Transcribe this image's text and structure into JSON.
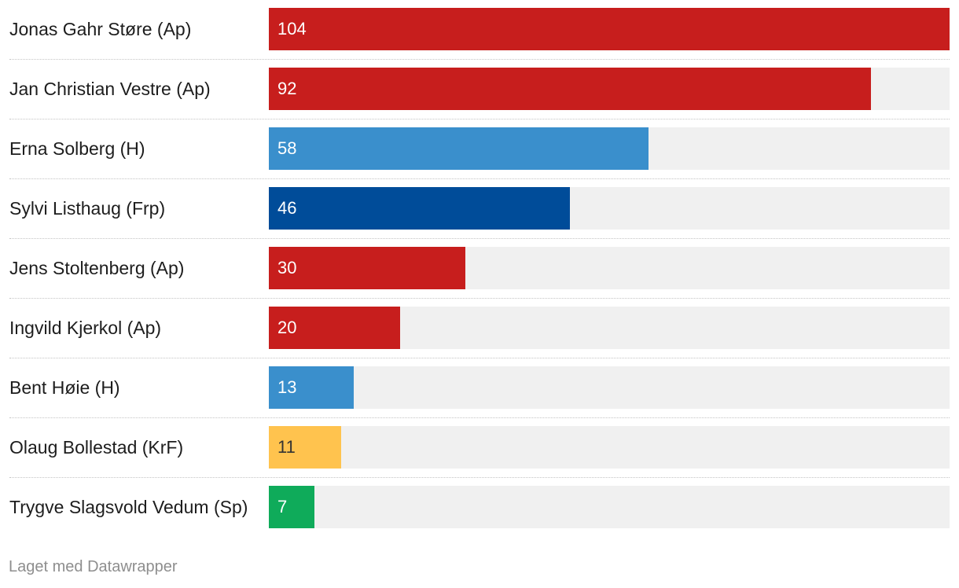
{
  "chart_data": {
    "type": "bar",
    "orientation": "horizontal",
    "title": "",
    "xlabel": "",
    "ylabel": "",
    "xlim": [
      0,
      104
    ],
    "grid": false,
    "categories": [
      "Jonas Gahr Støre (Ap)",
      "Jan Christian Vestre (Ap)",
      "Erna Solberg (H)",
      "Sylvi Listhaug (Frp)",
      "Jens Stoltenberg (Ap)",
      "Ingvild Kjerkol (Ap)",
      "Bent Høie (H)",
      "Olaug Bollestad (KrF)",
      "Trygve Slagsvold Vedum (Sp)"
    ],
    "values": [
      104,
      92,
      58,
      46,
      30,
      20,
      13,
      11,
      7
    ],
    "bar_colors": [
      "#c71e1d",
      "#c71e1d",
      "#3a8fcc",
      "#004c99",
      "#c71e1d",
      "#c71e1d",
      "#3a8fcc",
      "#ffc34e",
      "#0fab5a"
    ],
    "label_text_colors": [
      "#ffffff",
      "#ffffff",
      "#ffffff",
      "#ffffff",
      "#ffffff",
      "#ffffff",
      "#ffffff",
      "#333333",
      "#ffffff"
    ]
  },
  "footer": {
    "credit": "Laget med Datawrapper"
  },
  "colors": {
    "track": "#f0f0f0",
    "divider": "#c4c4c4",
    "footer_text": "#8e8e8e"
  }
}
